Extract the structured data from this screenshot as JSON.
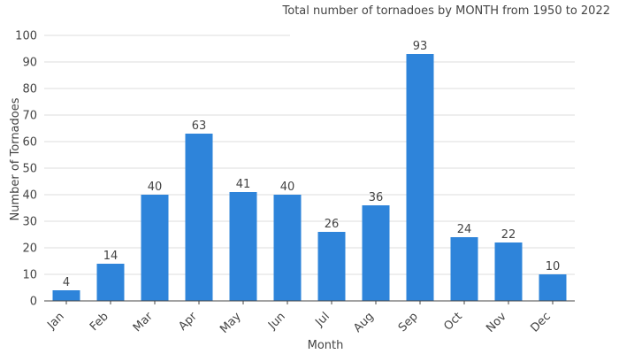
{
  "chart_data": {
    "type": "bar",
    "title": "Total number of tornadoes by MONTH from 1950 to 2022",
    "xlabel": "Month",
    "ylabel": "Number of Tornadoes",
    "categories": [
      "Jan",
      "Feb",
      "Mar",
      "Apr",
      "May",
      "Jun",
      "Jul",
      "Aug",
      "Sep",
      "Oct",
      "Nov",
      "Dec"
    ],
    "values": [
      4,
      14,
      40,
      63,
      41,
      40,
      26,
      36,
      93,
      24,
      22,
      10
    ],
    "ylim": [
      0,
      100
    ],
    "yticks": [
      0,
      10,
      20,
      30,
      40,
      50,
      60,
      70,
      80,
      90,
      100
    ],
    "bar_color": "#2e84da",
    "grid": true,
    "legend": "none"
  }
}
